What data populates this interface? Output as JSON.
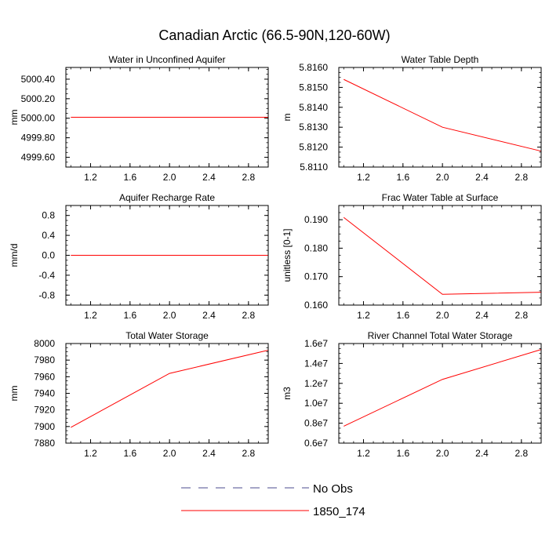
{
  "title": "Canadian Arctic (66.5-90N,120-60W)",
  "legend": [
    {
      "label": "No Obs",
      "color": "#4b4b8f",
      "dash": true
    },
    {
      "label": "1850_174",
      "color": "#ff0000",
      "dash": false
    }
  ],
  "chart_data": [
    {
      "type": "line",
      "title": "Water in Unconfined Aquifer",
      "ylabel": "mm",
      "xlim": [
        0.95,
        3.0
      ],
      "ylim": [
        4999.5,
        5000.52
      ],
      "xticks": [
        "1.2",
        "1.6",
        "2.0",
        "2.4",
        "2.8"
      ],
      "yticks": [
        "4999.60",
        "4999.80",
        "5000.00",
        "5000.20",
        "5000.40"
      ],
      "series": [
        {
          "color": "#ff0000",
          "x": [
            1,
            2,
            3
          ],
          "y": [
            5000.01,
            5000.01,
            5000.01
          ]
        }
      ]
    },
    {
      "type": "line",
      "title": "Water Table Depth",
      "ylabel": "m",
      "xlim": [
        0.95,
        3.0
      ],
      "ylim": [
        5.811,
        5.816
      ],
      "xticks": [
        "1.2",
        "1.6",
        "2.0",
        "2.4",
        "2.8"
      ],
      "yticks": [
        "5.8110",
        "5.8120",
        "5.8130",
        "5.8140",
        "5.8150",
        "5.8160"
      ],
      "series": [
        {
          "color": "#ff0000",
          "x": [
            1,
            2,
            3
          ],
          "y": [
            5.8154,
            5.813,
            5.8118
          ]
        }
      ]
    },
    {
      "type": "line",
      "title": "Aquifer Recharge Rate",
      "ylabel": "mm/d",
      "xlim": [
        0.95,
        3.0
      ],
      "ylim": [
        -1.0,
        1.0
      ],
      "xticks": [
        "1.2",
        "1.6",
        "2.0",
        "2.4",
        "2.8"
      ],
      "yticks": [
        "-0.8",
        "-0.4",
        "0.0",
        "0.4",
        "0.8"
      ],
      "series": [
        {
          "color": "#ff0000",
          "x": [
            1,
            2,
            3
          ],
          "y": [
            0.0,
            0.0,
            0.0
          ]
        }
      ]
    },
    {
      "type": "line",
      "title": "Frac Water Table at Surface",
      "ylabel": "unitless [0-1]",
      "xlim": [
        0.95,
        3.0
      ],
      "ylim": [
        0.16,
        0.195
      ],
      "xticks": [
        "1.2",
        "1.6",
        "2.0",
        "2.4",
        "2.8"
      ],
      "yticks": [
        "0.160",
        "0.170",
        "0.180",
        "0.190"
      ],
      "series": [
        {
          "color": "#ff0000",
          "x": [
            1,
            2,
            3
          ],
          "y": [
            0.1908,
            0.1638,
            0.1645
          ]
        }
      ]
    },
    {
      "type": "line",
      "title": "Total Water Storage",
      "ylabel": "mm",
      "xlim": [
        0.95,
        3.0
      ],
      "ylim": [
        7880,
        8000
      ],
      "xticks": [
        "1.2",
        "1.6",
        "2.0",
        "2.4",
        "2.8"
      ],
      "yticks": [
        "7880",
        "7900",
        "7920",
        "7940",
        "7960",
        "7980",
        "8000"
      ],
      "series": [
        {
          "color": "#ff0000",
          "x": [
            1,
            2,
            3
          ],
          "y": [
            7899,
            7964,
            7992
          ]
        }
      ]
    },
    {
      "type": "line",
      "title": "River Channel Total Water Storage",
      "ylabel": "m3",
      "xlim": [
        0.95,
        3.0
      ],
      "ylim": [
        6000000,
        16000000
      ],
      "xticks": [
        "1.2",
        "1.6",
        "2.0",
        "2.4",
        "2.8"
      ],
      "yticks": [
        "0.6e7",
        "0.8e7",
        "1.0e7",
        "1.2e7",
        "1.4e7",
        "1.6e7"
      ],
      "series": [
        {
          "color": "#ff0000",
          "x": [
            1,
            2,
            3
          ],
          "y": [
            7700000,
            12400000,
            15400000
          ]
        }
      ]
    }
  ]
}
